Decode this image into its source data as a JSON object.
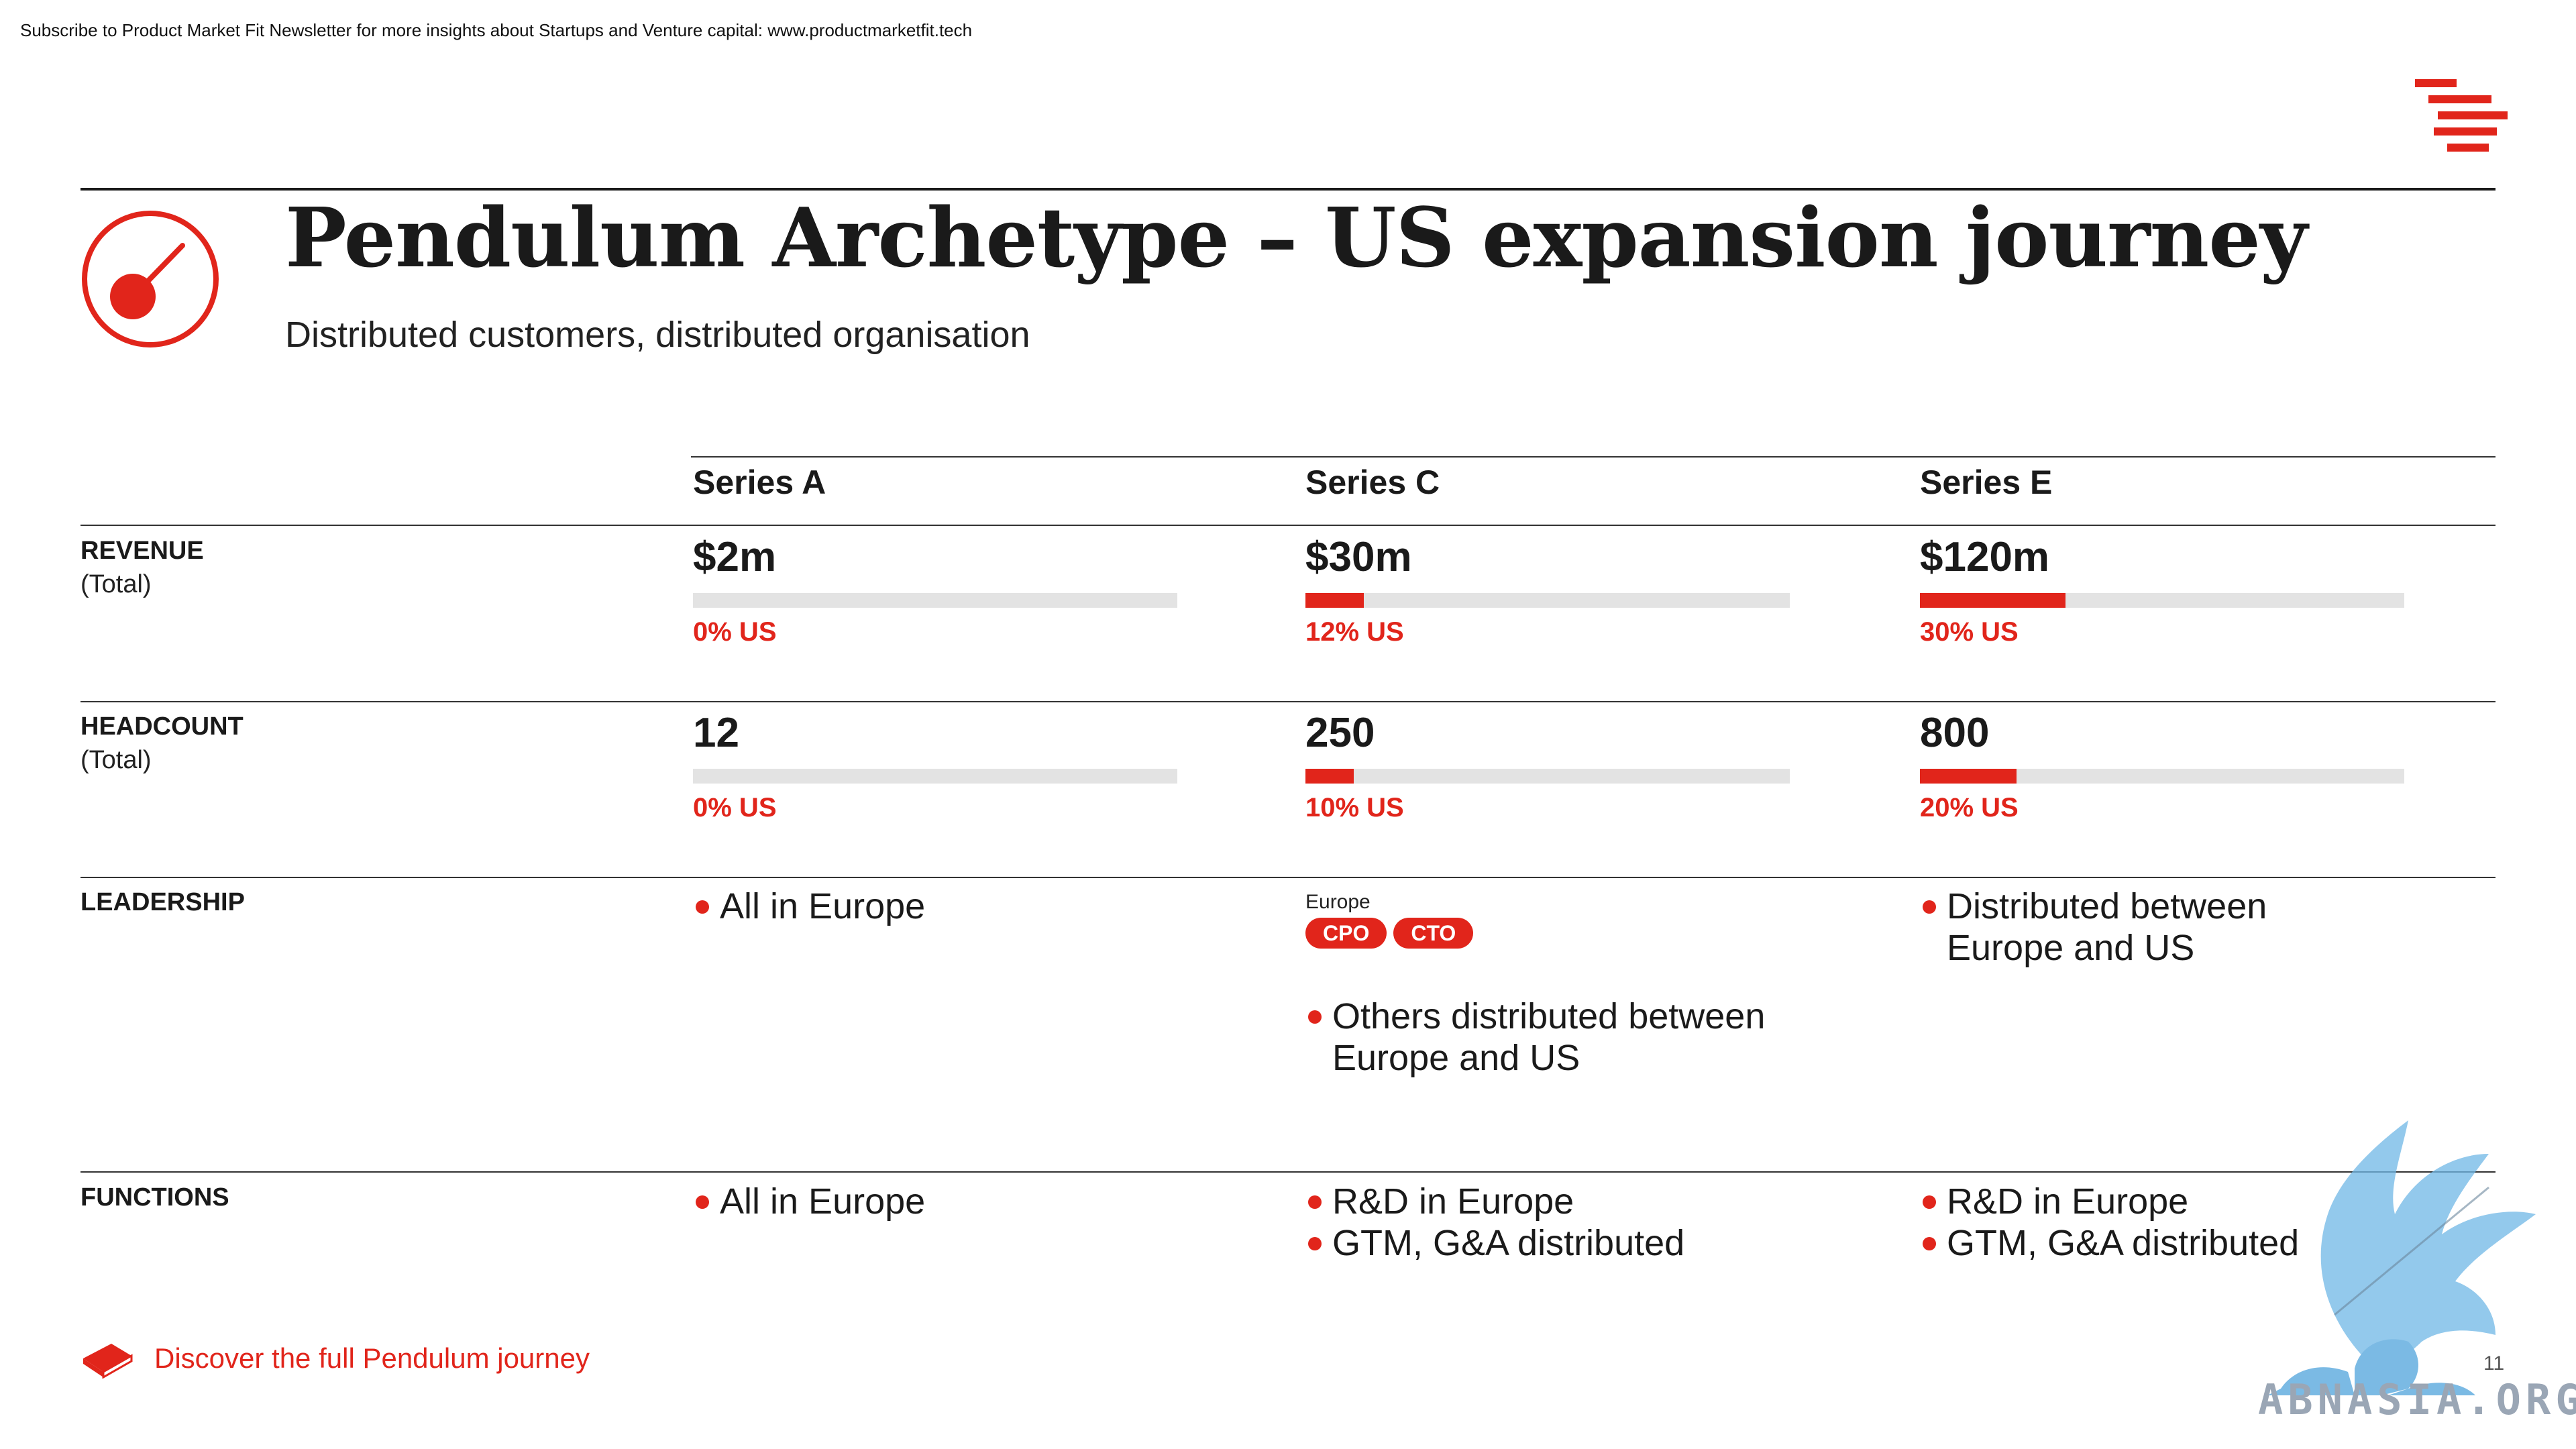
{
  "newsletter": "Subscribe to Product Market Fit Newsletter for more insights about Startups and Venture capital:  www.productmarketfit.tech",
  "title": "Pendulum Archetype – US expansion journey",
  "subtitle": "Distributed customers, distributed organisation",
  "colors": {
    "accent": "#e1251b",
    "track": "#e3e3e3",
    "text": "#1a1a1a"
  },
  "columns": [
    "Series A",
    "Series C",
    "Series E"
  ],
  "rows": {
    "revenue": {
      "label": "REVENUE",
      "sub": "(Total)",
      "values": [
        "$2m",
        "$30m",
        "$120m"
      ],
      "us_share_pct": [
        0,
        12,
        30
      ],
      "us_labels": [
        "0% US",
        "12% US",
        "30% US"
      ]
    },
    "headcount": {
      "label": "HEADCOUNT",
      "sub": "(Total)",
      "values": [
        "12",
        "250",
        "800"
      ],
      "us_share_pct": [
        0,
        10,
        20
      ],
      "us_labels": [
        "0% US",
        "10% US",
        "20% US"
      ]
    },
    "leadership": {
      "label": "LEADERSHIP",
      "series_a": [
        "All in Europe"
      ],
      "series_c": {
        "location_label": "Europe",
        "roles": [
          "CPO",
          "CTO"
        ],
        "bullets": [
          "Others distributed between",
          "Europe and US"
        ]
      },
      "series_e": [
        "Distributed between",
        "Europe and US"
      ]
    },
    "functions": {
      "label": "FUNCTIONS",
      "series_a": [
        "All in Europe"
      ],
      "series_c": [
        "R&D in Europe",
        "GTM, G&A distributed"
      ],
      "series_e": [
        "R&D in Europe",
        "GTM, G&A distributed"
      ]
    }
  },
  "footer": {
    "discover": "Discover the full Pendulum journey",
    "page_number": "11",
    "watermark": "ABNASIA.ORG",
    "icons": {
      "brand": "brand-lines-icon",
      "pendulum": "pendulum-icon",
      "book": "book-icon",
      "watermark": "griffin-watermark-icon"
    }
  }
}
